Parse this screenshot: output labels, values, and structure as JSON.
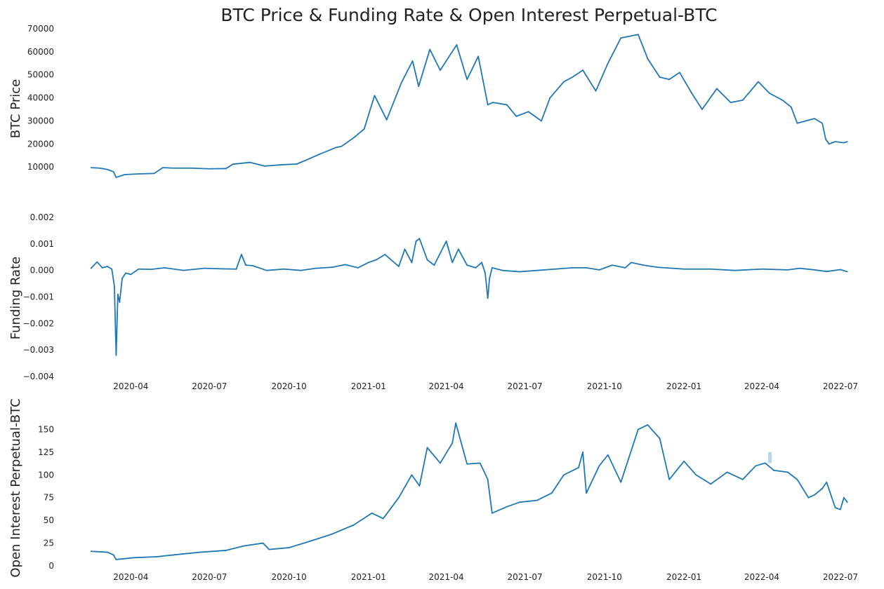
{
  "colors": {
    "series": "#1f77b4",
    "band": "#a9c9e4",
    "text": "#222222",
    "background": "#ffffff"
  },
  "chart_data": [
    {
      "type": "line",
      "panel": "price",
      "title": "BTC Price & Funding Rate & Open Interest Perpetual-BTC",
      "xlabel": "",
      "ylabel": "BTC  Price",
      "xlim": [
        "2020-02-12",
        "2022-07-10"
      ],
      "ylim": [
        0,
        70000
      ],
      "yticks": [
        10000,
        20000,
        30000,
        40000,
        50000,
        60000,
        70000
      ],
      "xticks": [],
      "grid": false,
      "legend": "none",
      "x": [
        "2020-02-15",
        "2020-02-25",
        "2020-03-05",
        "2020-03-12",
        "2020-03-15",
        "2020-03-25",
        "2020-04-10",
        "2020-04-28",
        "2020-05-08",
        "2020-05-20",
        "2020-06-10",
        "2020-06-30",
        "2020-07-20",
        "2020-07-28",
        "2020-08-17",
        "2020-09-03",
        "2020-09-20",
        "2020-10-10",
        "2020-10-21",
        "2020-11-05",
        "2020-11-24",
        "2020-12-01",
        "2020-12-16",
        "2020-12-27",
        "2021-01-08",
        "2021-01-22",
        "2021-02-08",
        "2021-02-21",
        "2021-02-28",
        "2021-03-13",
        "2021-03-25",
        "2021-04-13",
        "2021-04-25",
        "2021-05-08",
        "2021-05-19",
        "2021-05-25",
        "2021-06-10",
        "2021-06-21",
        "2021-07-05",
        "2021-07-20",
        "2021-07-30",
        "2021-08-15",
        "2021-08-25",
        "2021-09-06",
        "2021-09-21",
        "2021-10-05",
        "2021-10-20",
        "2021-11-09",
        "2021-11-20",
        "2021-12-04",
        "2021-12-15",
        "2021-12-27",
        "2022-01-10",
        "2022-01-22",
        "2022-02-08",
        "2022-02-24",
        "2022-03-10",
        "2022-03-28",
        "2022-04-10",
        "2022-04-25",
        "2022-05-05",
        "2022-05-12",
        "2022-06-01",
        "2022-06-10",
        "2022-06-14",
        "2022-06-18",
        "2022-06-25",
        "2022-07-05",
        "2022-07-09"
      ],
      "values": [
        9700,
        9500,
        8900,
        7900,
        5500,
        6700,
        7000,
        7200,
        9700,
        9500,
        9500,
        9200,
        9300,
        11200,
        12000,
        10400,
        10900,
        11300,
        13000,
        15500,
        18400,
        19000,
        23000,
        26500,
        41000,
        30500,
        46500,
        56000,
        45000,
        61000,
        52000,
        63000,
        48000,
        58000,
        37000,
        38000,
        37000,
        32000,
        34000,
        30000,
        40000,
        47000,
        49000,
        52000,
        43000,
        55000,
        66000,
        67500,
        57000,
        49000,
        48000,
        51000,
        42000,
        35000,
        44000,
        38000,
        39000,
        47000,
        42000,
        39000,
        36000,
        29000,
        31000,
        29000,
        22000,
        20000,
        21000,
        20500,
        21000
      ]
    },
    {
      "type": "line",
      "panel": "funding",
      "xlabel": "",
      "ylabel": "Funding Rate",
      "xlim": [
        "2020-02-12",
        "2022-07-10"
      ],
      "ylim": [
        -0.004,
        0.002
      ],
      "yticks": [
        "0.002",
        "0.001",
        "0.000",
        "−0.001",
        "−0.002",
        "−0.003",
        "−0.004"
      ],
      "ytick_values": [
        0.002,
        0.001,
        0.0,
        -0.001,
        -0.002,
        -0.003,
        -0.004
      ],
      "xticks": [
        "2020-04",
        "2020-07",
        "2020-10",
        "2021-01",
        "2021-04",
        "2021-07",
        "2021-10",
        "2022-01",
        "2022-04",
        "2022-07"
      ],
      "grid": false,
      "legend": "none",
      "x": [
        "2020-02-15",
        "2020-02-22",
        "2020-02-28",
        "2020-03-05",
        "2020-03-10",
        "2020-03-13",
        "2020-03-15",
        "2020-03-17",
        "2020-03-19",
        "2020-03-22",
        "2020-03-26",
        "2020-04-01",
        "2020-04-10",
        "2020-04-25",
        "2020-05-10",
        "2020-06-01",
        "2020-06-25",
        "2020-07-15",
        "2020-08-01",
        "2020-08-07",
        "2020-08-12",
        "2020-08-20",
        "2020-09-05",
        "2020-09-25",
        "2020-10-15",
        "2020-11-01",
        "2020-11-20",
        "2020-12-05",
        "2020-12-20",
        "2021-01-01",
        "2021-01-10",
        "2021-01-20",
        "2021-02-05",
        "2021-02-12",
        "2021-02-20",
        "2021-02-25",
        "2021-03-01",
        "2021-03-10",
        "2021-03-18",
        "2021-04-01",
        "2021-04-08",
        "2021-04-15",
        "2021-04-25",
        "2021-05-05",
        "2021-05-12",
        "2021-05-16",
        "2021-05-19",
        "2021-05-21",
        "2021-05-24",
        "2021-06-05",
        "2021-06-25",
        "2021-07-15",
        "2021-08-05",
        "2021-08-25",
        "2021-09-10",
        "2021-09-25",
        "2021-10-10",
        "2021-10-25",
        "2021-11-01",
        "2021-11-15",
        "2021-12-01",
        "2022-01-01",
        "2022-02-01",
        "2022-03-01",
        "2022-04-01",
        "2022-05-01",
        "2022-05-15",
        "2022-06-01",
        "2022-06-15",
        "2022-07-01",
        "2022-07-09"
      ],
      "values": [
        8e-05,
        0.00032,
        0.0001,
        0.00015,
        5e-05,
        -0.0006,
        -0.0032,
        -0.0009,
        -0.0012,
        -0.0003,
        -0.0001,
        -0.00015,
        5e-05,
        4e-05,
        0.0001,
        0.0,
        8e-05,
        6e-05,
        5e-05,
        0.0006,
        0.0002,
        0.00018,
        0.0,
        5e-05,
        0.0,
        8e-05,
        0.00012,
        0.00022,
        0.0001,
        0.0003,
        0.0004,
        0.0006,
        0.00015,
        0.0008,
        0.0003,
        0.0011,
        0.0012,
        0.0004,
        0.0002,
        0.0011,
        0.0003,
        0.0008,
        0.0002,
        0.0001,
        0.0003,
        -0.0001,
        -0.00105,
        -0.0003,
        0.0001,
        0.0,
        -5e-05,
        0.0,
        5e-05,
        0.0001,
        0.0001,
        2e-05,
        0.0002,
        0.0001,
        0.0003,
        0.0002,
        0.00012,
        5e-05,
        5e-05,
        0.0,
        5e-05,
        2e-05,
        8e-05,
        2e-05,
        -4e-05,
        3e-05,
        -5e-05
      ]
    },
    {
      "type": "line",
      "panel": "open_interest",
      "xlabel": "",
      "ylabel": "Open Interest Perpetual-BTC",
      "xlim": [
        "2020-02-12",
        "2022-07-10"
      ],
      "ylim": [
        0,
        175
      ],
      "yticks": [
        0,
        25,
        50,
        75,
        100,
        125,
        150
      ],
      "xticks": [
        "2020-04",
        "2020-07",
        "2020-10",
        "2021-01",
        "2021-04",
        "2021-07",
        "2021-10",
        "2022-01",
        "2022-04",
        "2022-07"
      ],
      "grid": false,
      "legend": "none",
      "x": [
        "2020-02-15",
        "2020-03-05",
        "2020-03-12",
        "2020-03-15",
        "2020-04-05",
        "2020-05-01",
        "2020-05-20",
        "2020-06-20",
        "2020-07-20",
        "2020-08-10",
        "2020-09-01",
        "2020-09-08",
        "2020-10-01",
        "2020-10-25",
        "2020-11-20",
        "2020-12-15",
        "2021-01-05",
        "2021-01-18",
        "2021-02-05",
        "2021-02-20",
        "2021-03-01",
        "2021-03-10",
        "2021-03-25",
        "2021-04-08",
        "2021-04-12",
        "2021-04-25",
        "2021-05-10",
        "2021-05-19",
        "2021-05-24",
        "2021-06-10",
        "2021-06-25",
        "2021-07-15",
        "2021-08-01",
        "2021-08-15",
        "2021-09-01",
        "2021-09-06",
        "2021-09-10",
        "2021-09-25",
        "2021-10-05",
        "2021-10-20",
        "2021-11-09",
        "2021-11-20",
        "2021-12-04",
        "2021-12-15",
        "2022-01-01",
        "2022-01-15",
        "2022-02-01",
        "2022-02-20",
        "2022-03-10",
        "2022-03-25",
        "2022-04-05",
        "2022-04-15",
        "2022-05-01",
        "2022-05-12",
        "2022-05-25",
        "2022-06-01",
        "2022-06-10",
        "2022-06-15",
        "2022-06-25",
        "2022-07-01",
        "2022-07-05",
        "2022-07-09"
      ],
      "values": [
        16,
        15,
        12,
        7,
        9,
        10,
        12,
        15,
        17,
        22,
        25,
        18,
        20,
        27,
        35,
        45,
        58,
        52,
        75,
        100,
        88,
        130,
        113,
        135,
        157,
        112,
        113,
        95,
        58,
        65,
        70,
        72,
        80,
        100,
        108,
        125,
        80,
        110,
        122,
        92,
        150,
        155,
        140,
        95,
        115,
        100,
        90,
        103,
        95,
        110,
        113,
        105,
        103,
        95,
        75,
        78,
        85,
        92,
        64,
        62,
        75,
        70
      ],
      "band": {
        "x": "2022-04-10",
        "low": 113,
        "high": 125
      }
    }
  ]
}
